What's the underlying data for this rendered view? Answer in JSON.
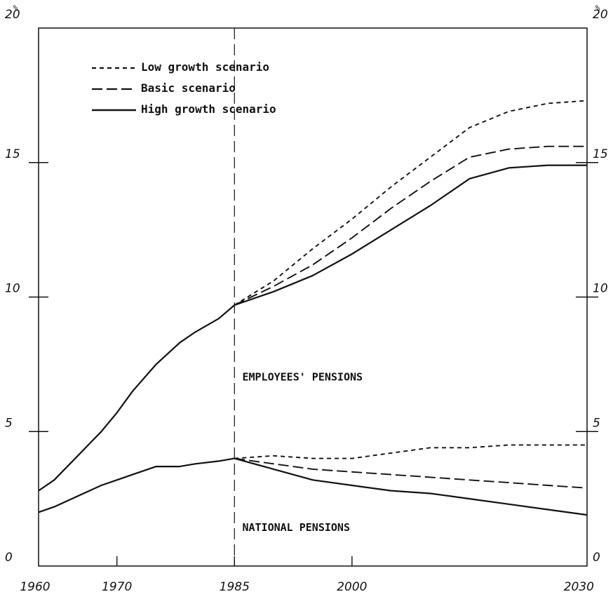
{
  "chart_data": {
    "type": "line",
    "unit_left": "%",
    "unit_right": "%",
    "x_ticks": [
      1960,
      1970,
      1985,
      2000,
      2030
    ],
    "y_ticks": [
      0,
      5,
      10,
      15,
      20
    ],
    "xlim": [
      1960,
      2030
    ],
    "ylim": [
      0,
      20
    ],
    "grid": false,
    "legend_position": "top-left",
    "legend": [
      {
        "label": "Low growth scenario",
        "style": "short-dash"
      },
      {
        "label": "Basic scenario",
        "style": "long-dash"
      },
      {
        "label": "High growth scenario",
        "style": "solid"
      }
    ],
    "annotations": [
      {
        "text": "EMPLOYEES' PENSIONS",
        "x": 1986,
        "y": 6.9
      },
      {
        "text": "NATIONAL PENSIONS",
        "x": 1986,
        "y": 1.3
      }
    ],
    "reference_line_x": 1985,
    "groups": [
      {
        "name": "EMPLOYEES' PENSIONS",
        "historical": {
          "x": [
            1960,
            1962,
            1965,
            1968,
            1970,
            1972,
            1975,
            1978,
            1980,
            1983,
            1985
          ],
          "y": [
            2.8,
            3.2,
            4.1,
            5.0,
            5.7,
            6.5,
            7.5,
            8.3,
            8.7,
            9.2,
            9.7
          ]
        },
        "series": [
          {
            "name": "Low growth scenario",
            "style": "short-dash",
            "x": [
              1985,
              1990,
              1995,
              2000,
              2005,
              2010,
              2015,
              2020,
              2025,
              2030
            ],
            "y": [
              9.7,
              10.6,
              11.8,
              12.9,
              14.1,
              15.2,
              16.3,
              16.9,
              17.2,
              17.3
            ]
          },
          {
            "name": "Basic scenario",
            "style": "long-dash",
            "x": [
              1985,
              1990,
              1995,
              2000,
              2005,
              2010,
              2015,
              2020,
              2025,
              2030
            ],
            "y": [
              9.7,
              10.4,
              11.2,
              12.2,
              13.3,
              14.3,
              15.2,
              15.5,
              15.6,
              15.6
            ]
          },
          {
            "name": "High growth scenario",
            "style": "solid",
            "x": [
              1985,
              1990,
              1995,
              2000,
              2005,
              2010,
              2015,
              2020,
              2025,
              2030
            ],
            "y": [
              9.7,
              10.2,
              10.8,
              11.6,
              12.5,
              13.4,
              14.4,
              14.8,
              14.9,
              14.9
            ]
          }
        ]
      },
      {
        "name": "NATIONAL PENSIONS",
        "historical": {
          "x": [
            1960,
            1962,
            1965,
            1968,
            1970,
            1972,
            1975,
            1978,
            1980,
            1983,
            1985
          ],
          "y": [
            2.0,
            2.2,
            2.6,
            3.0,
            3.2,
            3.4,
            3.7,
            3.7,
            3.8,
            3.9,
            4.0
          ]
        },
        "series": [
          {
            "name": "Low growth scenario",
            "style": "short-dash",
            "x": [
              1985,
              1990,
              1995,
              2000,
              2005,
              2010,
              2015,
              2020,
              2025,
              2030
            ],
            "y": [
              4.0,
              4.1,
              4.0,
              4.0,
              4.2,
              4.4,
              4.4,
              4.5,
              4.5,
              4.5
            ]
          },
          {
            "name": "Basic scenario",
            "style": "long-dash",
            "x": [
              1985,
              1990,
              1995,
              2000,
              2005,
              2010,
              2015,
              2020,
              2025,
              2030
            ],
            "y": [
              4.0,
              3.8,
              3.6,
              3.5,
              3.4,
              3.3,
              3.2,
              3.1,
              3.0,
              2.9
            ]
          },
          {
            "name": "High growth scenario",
            "style": "solid",
            "x": [
              1985,
              1990,
              1995,
              2000,
              2005,
              2010,
              2015,
              2020,
              2025,
              2030
            ],
            "y": [
              4.0,
              3.6,
              3.2,
              3.0,
              2.8,
              2.7,
              2.5,
              2.3,
              2.1,
              1.9
            ]
          }
        ]
      }
    ]
  }
}
